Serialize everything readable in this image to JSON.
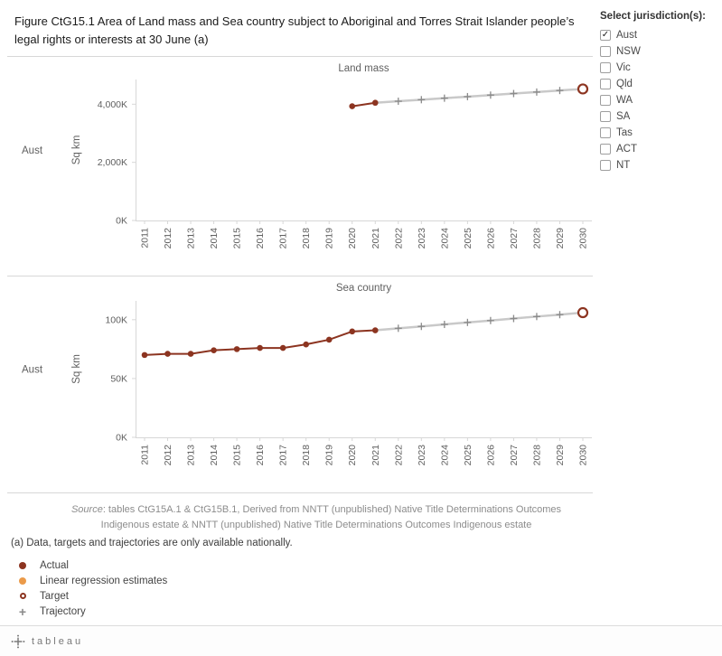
{
  "title": "Figure CtG15.1 Area of Land mass and Sea country subject to Aboriginal and Torres Strait Islander people’s legal rights or interests at 30 June (a)",
  "filter": {
    "title": "Select jurisdiction(s):",
    "options": [
      {
        "label": "Aust",
        "checked": true
      },
      {
        "label": "NSW",
        "checked": false
      },
      {
        "label": "Vic",
        "checked": false
      },
      {
        "label": "Qld",
        "checked": false
      },
      {
        "label": "WA",
        "checked": false
      },
      {
        "label": "SA",
        "checked": false
      },
      {
        "label": "Tas",
        "checked": false
      },
      {
        "label": "ACT",
        "checked": false
      },
      {
        "label": "NT",
        "checked": false
      }
    ]
  },
  "colors": {
    "actual": "#8c3420",
    "regression": "#eb9a49",
    "target": "#8c3420",
    "trajectory_line": "#c9c9c9",
    "trajectory_marker": "#8a8a8a",
    "axis_text": "#5f5f5f",
    "grid": "#d7d7d7"
  },
  "chart_data": [
    {
      "type": "line",
      "title": "Land mass",
      "row_label": "Aust",
      "ylabel": "Sq km",
      "x_years": [
        2011,
        2012,
        2013,
        2014,
        2015,
        2016,
        2017,
        2018,
        2019,
        2020,
        2021,
        2022,
        2023,
        2024,
        2025,
        2026,
        2027,
        2028,
        2029,
        2030
      ],
      "ylim": [
        0,
        4850
      ],
      "yticks": [
        {
          "value": 0,
          "label": "0K"
        },
        {
          "value": 2000,
          "label": "2,000K"
        },
        {
          "value": 4000,
          "label": "4,000K"
        }
      ],
      "series": {
        "actual": {
          "name": "Actual",
          "x": [
            2020,
            2021
          ],
          "values": [
            3930,
            4050
          ]
        },
        "trajectory": {
          "name": "Trajectory",
          "x": [
            2021,
            2022,
            2023,
            2024,
            2025,
            2026,
            2027,
            2028,
            2029,
            2030
          ],
          "values": [
            4050,
            4103,
            4156,
            4208,
            4261,
            4314,
            4367,
            4419,
            4472,
            4525
          ]
        },
        "target": {
          "name": "Target",
          "x": 2030,
          "value": 4525
        }
      }
    },
    {
      "type": "line",
      "title": "Sea country",
      "row_label": "Aust",
      "ylabel": "Sq km",
      "x_years": [
        2011,
        2012,
        2013,
        2014,
        2015,
        2016,
        2017,
        2018,
        2019,
        2020,
        2021,
        2022,
        2023,
        2024,
        2025,
        2026,
        2027,
        2028,
        2029,
        2030
      ],
      "ylim": [
        0,
        116
      ],
      "yticks": [
        {
          "value": 0,
          "label": "0K"
        },
        {
          "value": 50,
          "label": "50K"
        },
        {
          "value": 100,
          "label": "100K"
        }
      ],
      "series": {
        "actual": {
          "name": "Actual",
          "x": [
            2011,
            2012,
            2013,
            2014,
            2015,
            2016,
            2017,
            2018,
            2019,
            2020,
            2021
          ],
          "values": [
            70,
            71,
            71,
            74,
            75,
            76,
            76,
            79,
            83,
            90,
            91
          ]
        },
        "trajectory": {
          "name": "Trajectory",
          "x": [
            2021,
            2022,
            2023,
            2024,
            2025,
            2026,
            2027,
            2028,
            2029,
            2030
          ],
          "values": [
            91,
            92.7,
            94.3,
            96,
            97.7,
            99.3,
            101,
            102.7,
            104.3,
            106
          ]
        },
        "target": {
          "name": "Target",
          "x": 2030,
          "value": 106
        }
      }
    }
  ],
  "source": {
    "prefix": "Source",
    "line1_rest": ": tables CtG15A.1 & CtG15B.1, Derived from NNTT (unpublished) Native Title Determinations Outcomes",
    "line2": "Indigenous estate & NNTT (unpublished) Native Title Determinations Outcomes Indigenous estate"
  },
  "footnote": "(a) Data, targets and trajectories are only available nationally.",
  "legend": [
    {
      "label": "Actual",
      "marker": "filled-circle",
      "color": "#8c3420"
    },
    {
      "label": "Linear regression estimates",
      "marker": "filled-circle",
      "color": "#eb9a49"
    },
    {
      "label": "Target",
      "marker": "open-circle",
      "color": "#8c3420"
    },
    {
      "label": "Trajectory",
      "marker": "plus",
      "color": "#8a8a8a"
    }
  ],
  "footer": {
    "brand": "tableau"
  }
}
